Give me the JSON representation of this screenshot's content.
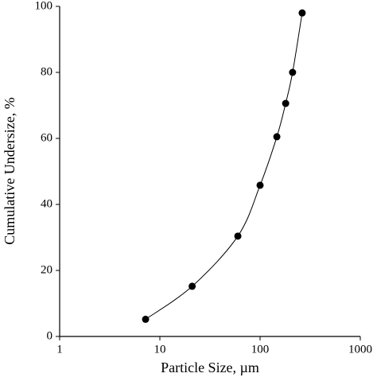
{
  "chart_data": {
    "type": "line",
    "smooth": true,
    "markers": true,
    "color": "#000000",
    "x_label": "Particle Size, µm",
    "y_label": "Cumulative Undersize, %",
    "xscale": "log",
    "xlim": [
      1,
      1000
    ],
    "xticks": [
      1,
      10,
      100,
      1000
    ],
    "ylim": [
      0,
      100
    ],
    "yticks": [
      0,
      20,
      40,
      60,
      80,
      100
    ],
    "x": [
      7.2,
      21,
      60,
      100,
      147,
      180,
      211,
      263
    ],
    "values": [
      5.2,
      15.2,
      30.4,
      45.8,
      60.5,
      70.6,
      80,
      98
    ]
  }
}
